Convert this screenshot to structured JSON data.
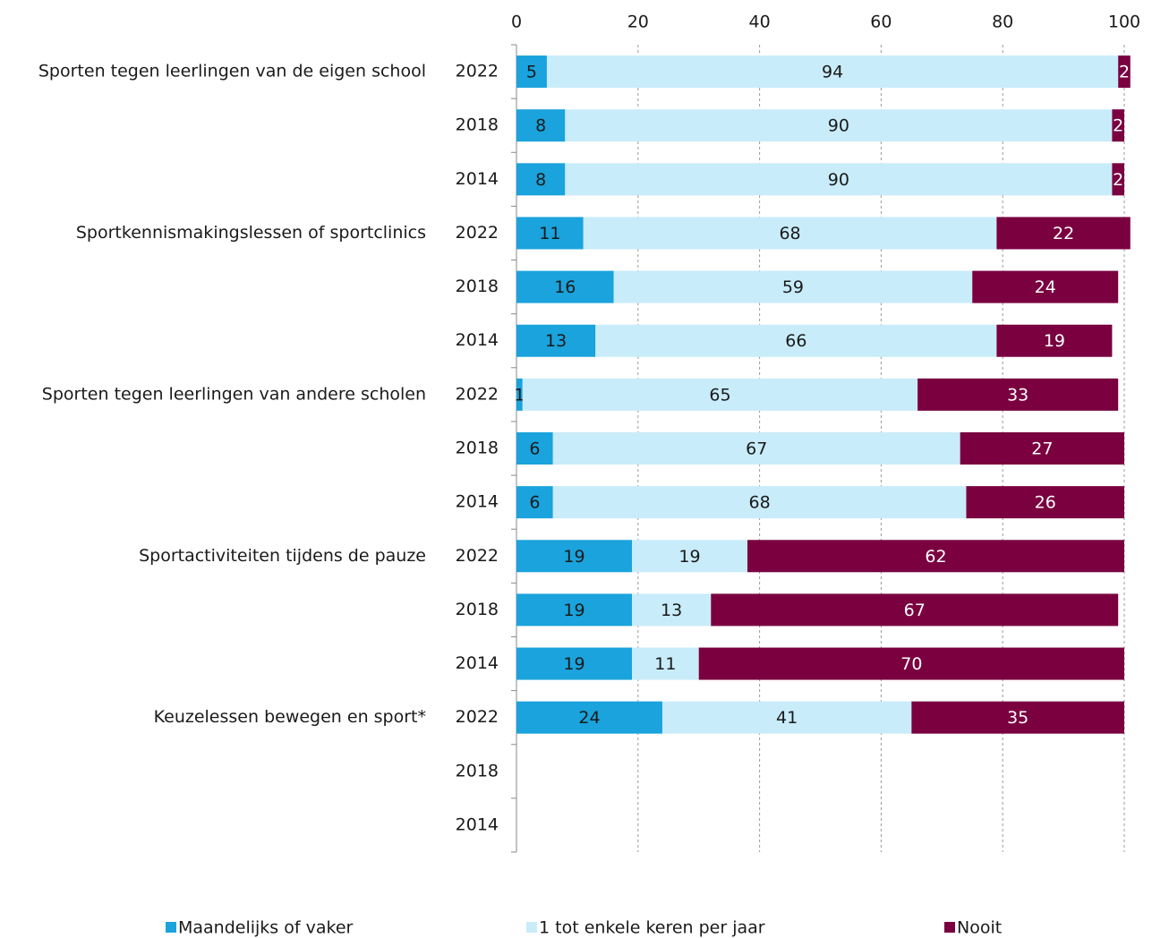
{
  "chart_data": {
    "type": "stacked-barh",
    "groups": [
      "Sporten tegen leerlingen van de eigen school",
      null,
      null,
      "Sportkennismakingslessen of sportclinics",
      null,
      null,
      "Sporten tegen leerlingen van andere scholen",
      null,
      null,
      "Sportactiviteiten tijdens de pauze",
      null,
      null,
      "Keuzelessen bewegen en sport*",
      null,
      null
    ],
    "categories": [
      "2022",
      "2018",
      "2014",
      "2022",
      "2018",
      "2014",
      "2022",
      "2018",
      "2014",
      "2022",
      "2018",
      "2014",
      "2022",
      "2018",
      "2014"
    ],
    "series": [
      {
        "name": "Maandelijks of vaker",
        "color": "#1aa3dc",
        "values": [
          5,
          8,
          8,
          11,
          16,
          13,
          1,
          6,
          6,
          19,
          19,
          19,
          24,
          null,
          null
        ]
      },
      {
        "name": "1 tot enkele keren per jaar",
        "color": "#c8ecfa",
        "values": [
          94,
          90,
          90,
          68,
          59,
          66,
          65,
          67,
          68,
          19,
          13,
          11,
          41,
          null,
          null
        ]
      },
      {
        "name": "Nooit",
        "color": "#7a0040",
        "values": [
          2,
          2,
          2,
          22,
          24,
          19,
          33,
          27,
          26,
          62,
          67,
          70,
          35,
          null,
          null
        ]
      }
    ],
    "xlim": [
      0,
      100
    ],
    "xticks": [
      0,
      20,
      40,
      60,
      80,
      100
    ],
    "grid": true,
    "legend": "bottom"
  }
}
